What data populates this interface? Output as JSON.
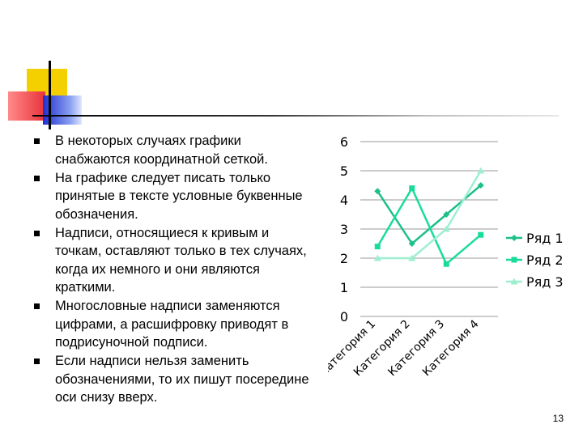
{
  "bullets": [
    "В некоторых случаях графики снабжаются координатной сеткой.",
    "На графике следует писать только принятые в тексте условные буквенные обозначения.",
    "Надписи, относящиеся к кривым и точкам, оставляют только в тех случаях, когда их немного и они являются краткими.",
    "Многословные надписи заменяются цифрами, а расшифровку приводят в подрисуночной подписи.",
    "Если надписи нельзя заменить обозначениями, то их пишут посередине оси снизу вверх."
  ],
  "page_number": "13",
  "colors": {
    "accent_yellow": "#f5d000",
    "accent_red": "#e8323a",
    "accent_blue": "#1f2fd0",
    "series_1": "#1dbf8a",
    "series_2": "#19dc9c",
    "series_3": "#9eefd0",
    "gridline": "#9a9a9a"
  },
  "chart_data": {
    "type": "line",
    "categories": [
      "Категория 1",
      "Категория 2",
      "Категория 3",
      "Категория 4"
    ],
    "series": [
      {
        "name": "Ряд 1",
        "values": [
          4.3,
          2.5,
          3.5,
          4.5
        ],
        "marker": "diamond"
      },
      {
        "name": "Ряд 2",
        "values": [
          2.4,
          4.4,
          1.8,
          2.8
        ],
        "marker": "square"
      },
      {
        "name": "Ряд 3",
        "values": [
          2,
          2,
          3,
          5
        ],
        "marker": "triangle"
      }
    ],
    "y_ticks": [
      "0",
      "1",
      "2",
      "3",
      "4",
      "5",
      "6"
    ],
    "ylim": [
      0,
      6
    ],
    "grid": "y-axis major gridlines",
    "legend_position": "right",
    "title": "",
    "xlabel": "",
    "ylabel": ""
  }
}
